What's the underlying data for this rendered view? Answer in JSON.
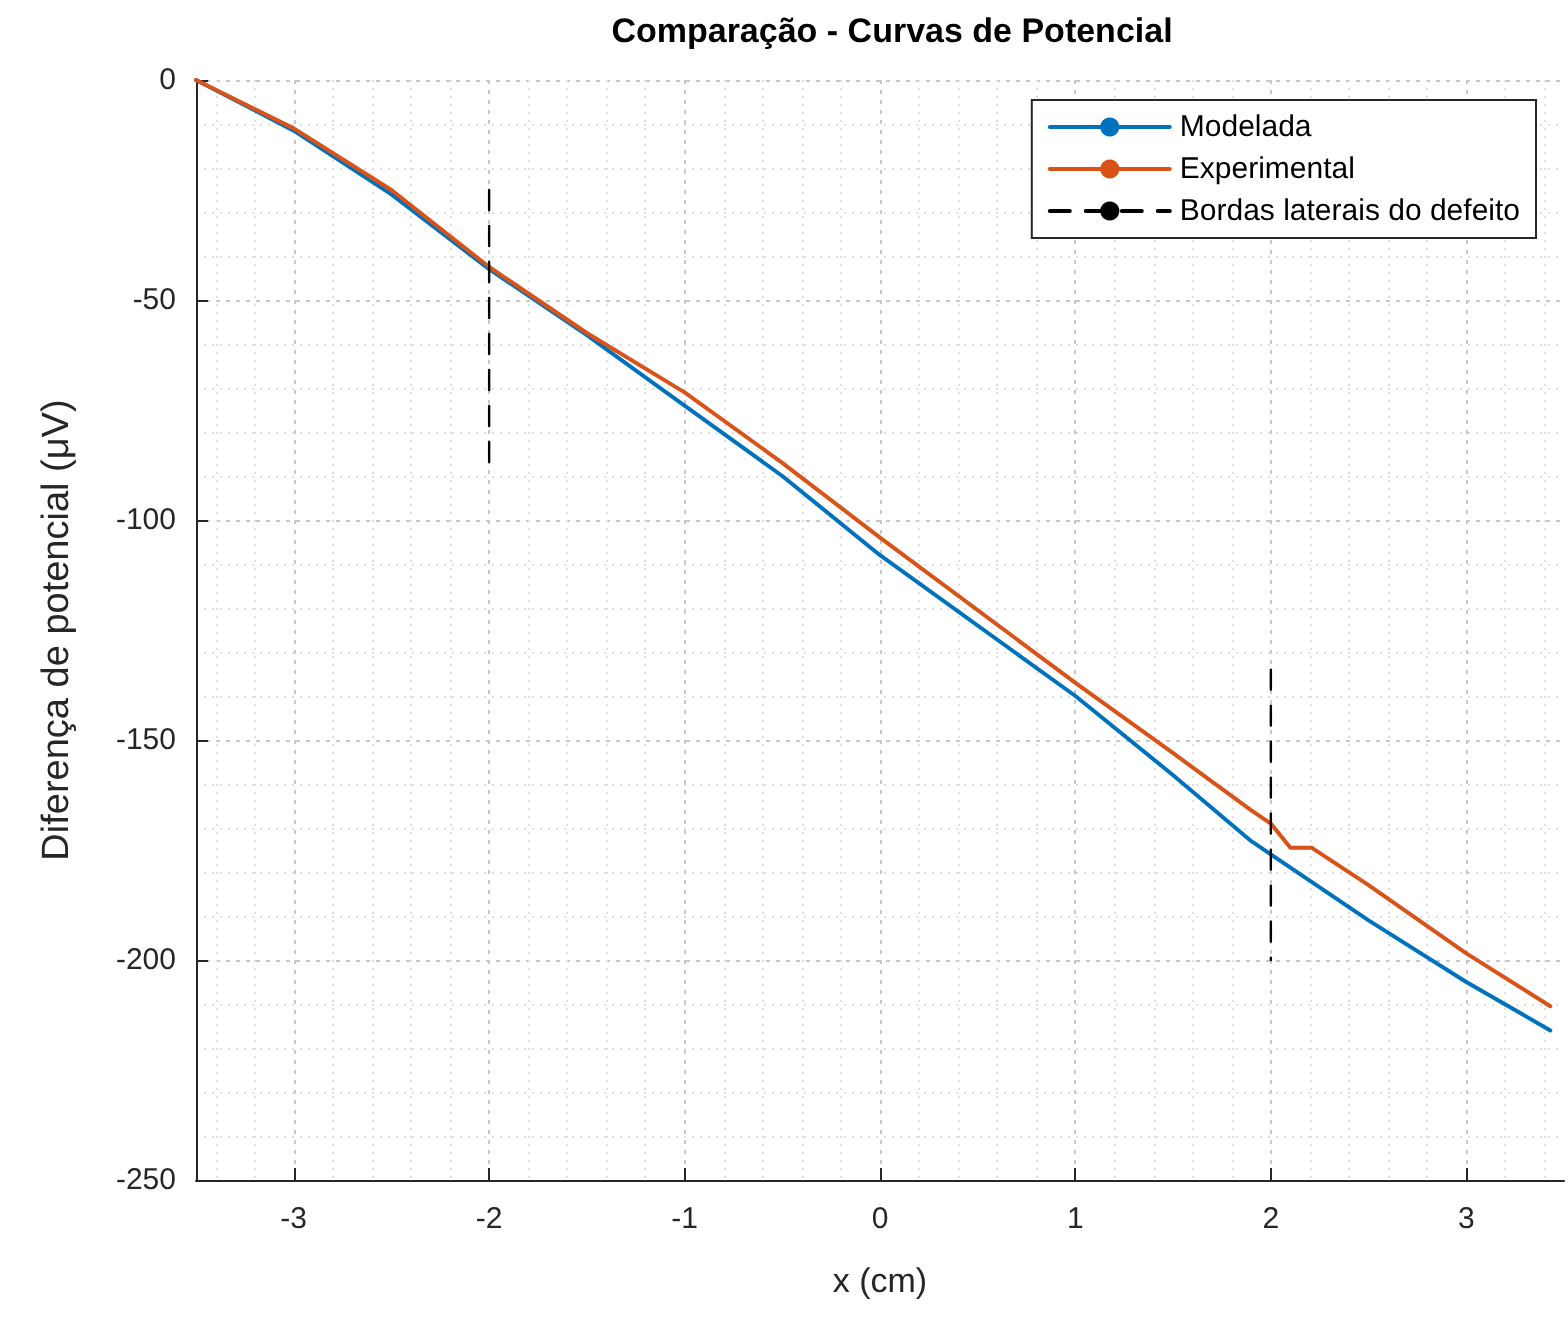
{
  "chart_data": {
    "type": "line",
    "title": "Comparação - Curvas de Potencial",
    "xlabel": "x (cm)",
    "ylabel": "Diferença de potencial (μV)",
    "xlim": [
      -3.5,
      3.5
    ],
    "xticks": [
      -3,
      -2,
      -1,
      0,
      1,
      2,
      3
    ],
    "ylim": [
      -250,
      0
    ],
    "yticks": [
      -250,
      -200,
      -150,
      -100,
      -50,
      0
    ],
    "grid": true,
    "legend": "top right",
    "marker": "none",
    "series": [
      {
        "name": "Modelada",
        "color": "#0072bd",
        "x": [
          -3.5,
          -3,
          -2.5,
          -2,
          -1.5,
          -1,
          -0.5,
          0,
          1,
          1.5,
          1.9,
          2,
          2.5,
          3,
          3.43
        ],
        "values": [
          0,
          -11.5,
          -26,
          -43,
          -58,
          -74,
          -90,
          -108,
          -140,
          -158,
          -173,
          -176,
          -191,
          -205,
          -216
        ]
      },
      {
        "name": "Experimental",
        "color": "#d95319",
        "x": [
          -3.5,
          -3,
          -2.5,
          -2,
          -1.5,
          -1,
          -0.5,
          0,
          1,
          1.5,
          1.9,
          2,
          2.1,
          2.21,
          2.5,
          3,
          3.43
        ],
        "values": [
          0,
          -11,
          -25,
          -42.5,
          -57.5,
          -71,
          -87,
          -104,
          -137,
          -153,
          -166,
          -169,
          -174.5,
          -174.5,
          -183,
          -198.5,
          -210.5
        ]
      },
      {
        "name": "Bordas laterais do defeito",
        "color": "#000000",
        "line_style": "dashed",
        "x": [
          -2,
          -2,
          0,
          2,
          2
        ],
        "values": [
          -25,
          -90,
          null,
          -134,
          -200
        ]
      }
    ]
  }
}
